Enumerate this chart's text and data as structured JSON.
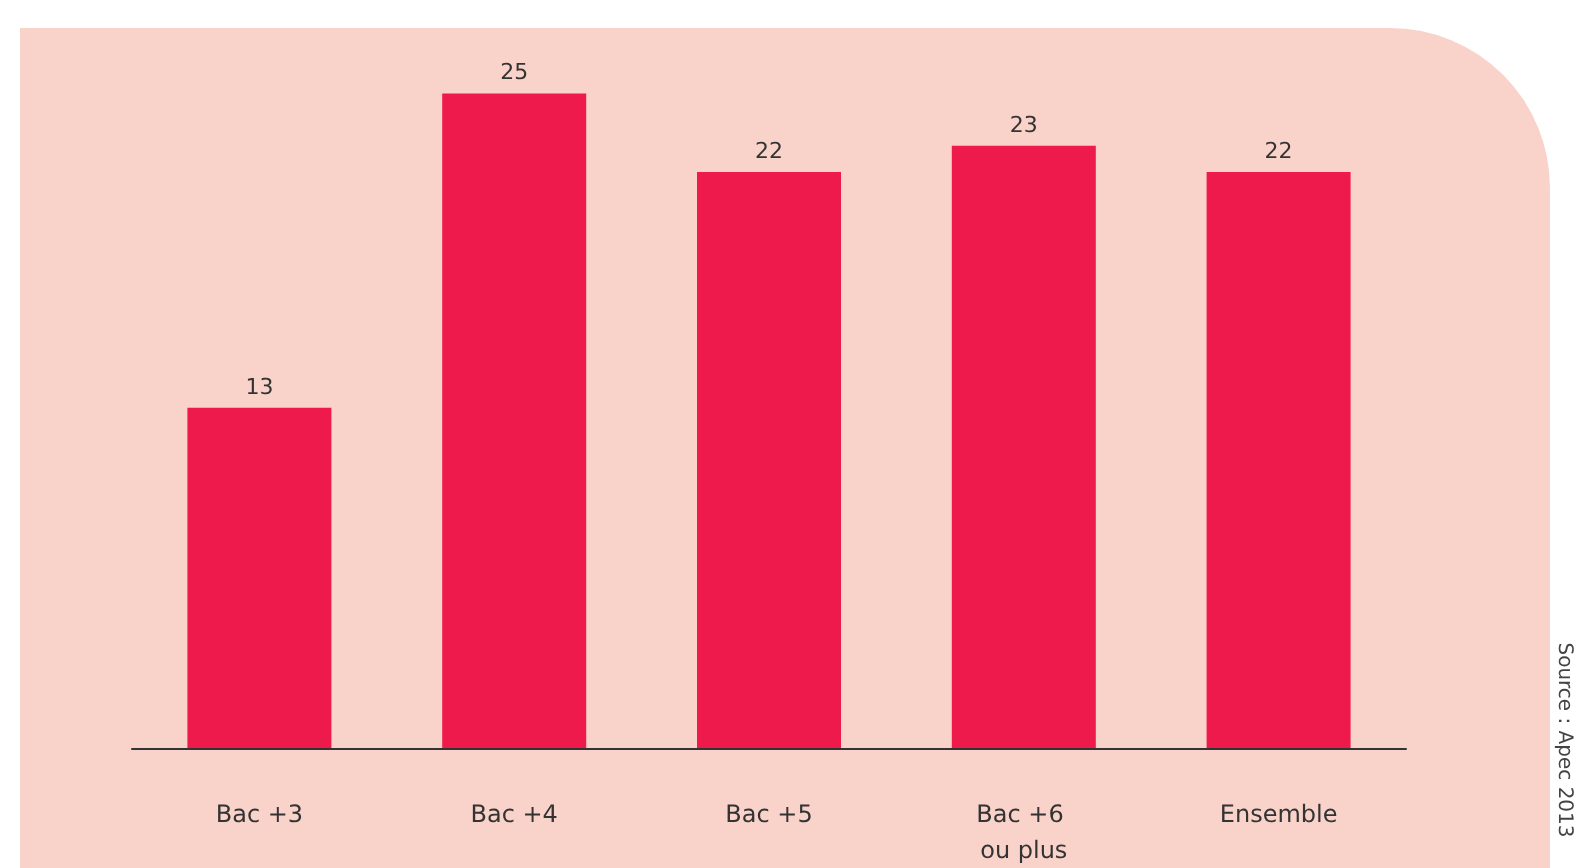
{
  "chart_data": {
    "type": "bar",
    "categories": [
      "Bac +3",
      "Bac +4",
      "Bac +5",
      "Bac +6 ou plus",
      "Ensemble"
    ],
    "values": [
      13,
      25,
      22,
      23,
      22
    ],
    "color": "#ee1a4b",
    "ylim": [
      0,
      27.5
    ],
    "data_labels": true,
    "grid": false,
    "tick_labels": "x",
    "annotations": [
      "Source : Apec 2013"
    ]
  }
}
